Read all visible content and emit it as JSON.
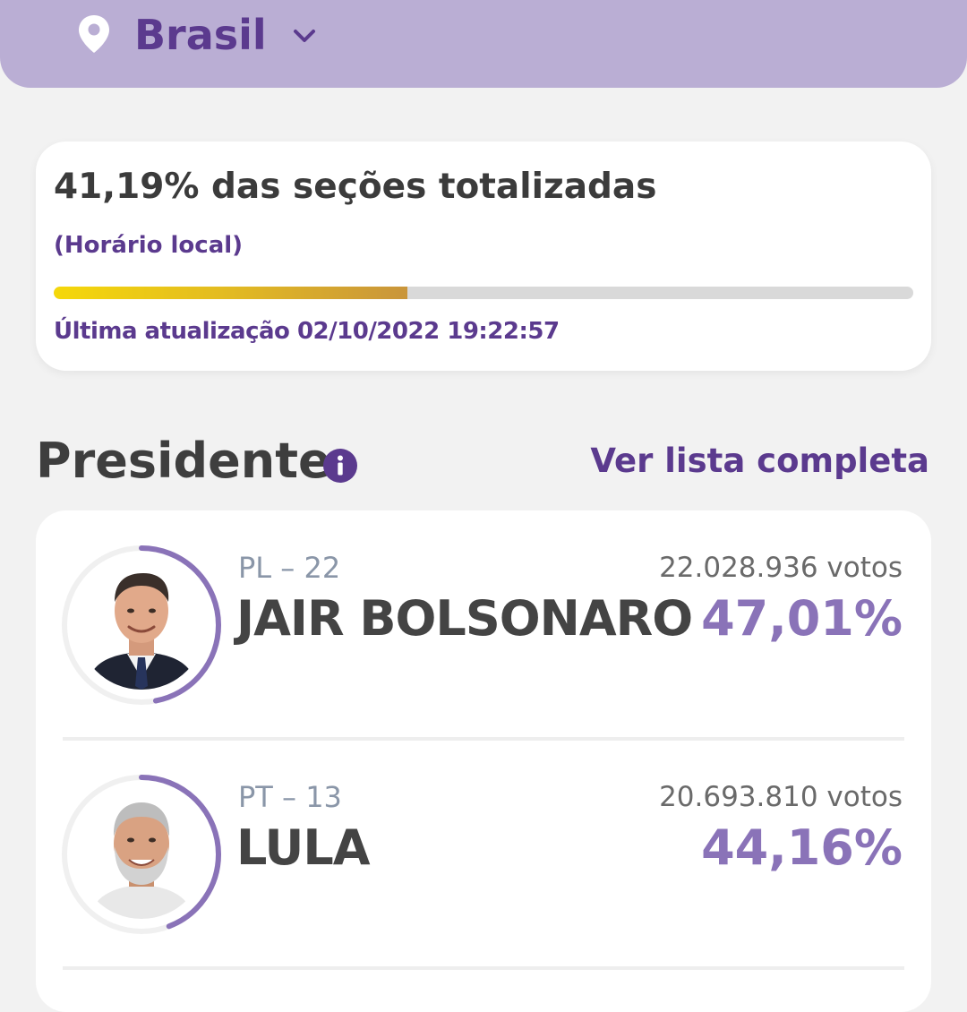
{
  "location": {
    "label": "Brasil",
    "icon": "map-pin-icon"
  },
  "status": {
    "title": "41,19% das seções totalizadas",
    "subtitle": "(Horário local)",
    "progress_percent": 41.19,
    "last_update": "Última atualização 02/10/2022 19:22:57"
  },
  "section": {
    "title": "Presidente",
    "info_icon": "info-icon",
    "see_all_label": "Ver lista completa"
  },
  "candidates": [
    {
      "party": "PL – 22",
      "name": "JAIR BOLSONARO",
      "votes": "22.028.936 votos",
      "percent": "47,01%",
      "percent_value": 47.01
    },
    {
      "party": "PT – 13",
      "name": "LULA",
      "votes": "20.693.810 votos",
      "percent": "44,16%",
      "percent_value": 44.16
    }
  ],
  "colors": {
    "accent": "#5b3a8e",
    "header_bg": "#baaed4",
    "percent": "#8a73b8",
    "ring": "#8a73b8"
  }
}
